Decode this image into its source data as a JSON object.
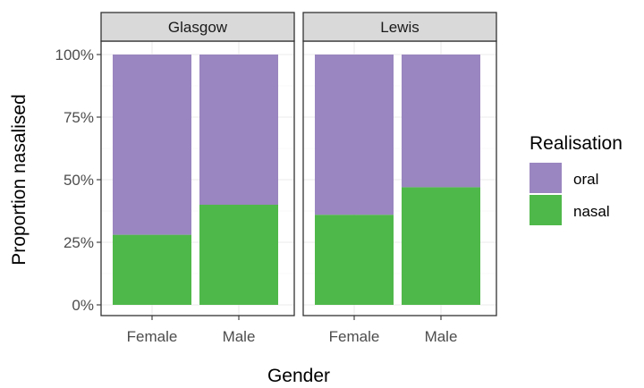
{
  "chart_data": {
    "type": "bar",
    "stacked": true,
    "facets": [
      {
        "label": "Glasgow",
        "categories": [
          "Female",
          "Male"
        ],
        "series": [
          {
            "name": "oral",
            "values": [
              0.72,
              0.6
            ]
          },
          {
            "name": "nasal",
            "values": [
              0.28,
              0.4
            ]
          }
        ]
      },
      {
        "label": "Lewis",
        "categories": [
          "Female",
          "Male"
        ],
        "series": [
          {
            "name": "oral",
            "values": [
              0.64,
              0.53
            ]
          },
          {
            "name": "nasal",
            "values": [
              0.36,
              0.47
            ]
          }
        ]
      }
    ],
    "ylabel": "Proportion nasalised",
    "xlabel": "Gender",
    "ylim": [
      0,
      1
    ],
    "yticks": [
      "0%",
      "25%",
      "50%",
      "75%",
      "100%"
    ],
    "legend": {
      "title": "Realisation",
      "placement": "right",
      "entries": [
        {
          "name": "oral",
          "color": "#9a86c0"
        },
        {
          "name": "nasal",
          "color": "#4fb84a"
        }
      ]
    },
    "grid": true
  }
}
